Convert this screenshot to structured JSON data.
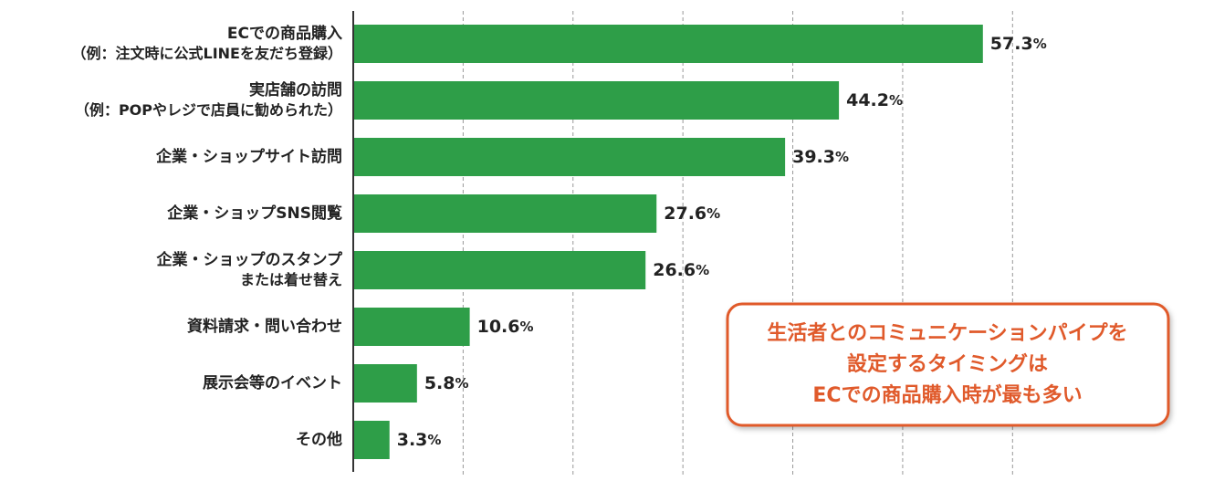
{
  "chart_data": {
    "type": "barh",
    "categories": [
      "ECでの商品購入\n（例：注文時に公式LINEを友だち登録）",
      "実店舗の訪問\n（例：POPやレジで店員に勧められた）",
      "企業・ショップサイト訪問",
      "企業・ショップSNS閲覧",
      "企業・ショップのスタンプ\nまたは着せ替え",
      "資料請求・問い合わせ",
      "展示会等のイベント",
      "その他"
    ],
    "values": [
      57.3,
      44.2,
      39.3,
      27.6,
      26.6,
      10.6,
      5.8,
      3.3
    ],
    "value_labels": [
      "57.3%",
      "44.2%",
      "39.3%",
      "27.6%",
      "26.6%",
      "10.6%",
      "5.8%",
      "3.3%"
    ],
    "color": "#2e9e48",
    "xlim": [
      0,
      78
    ],
    "xticks": [
      10,
      20,
      30,
      40,
      50,
      60
    ],
    "grid": true,
    "annotation": [
      "生活者とのコミュニケーションパイプを",
      "設定するタイミングは",
      "ECでの商品購入時が最も多い"
    ]
  }
}
